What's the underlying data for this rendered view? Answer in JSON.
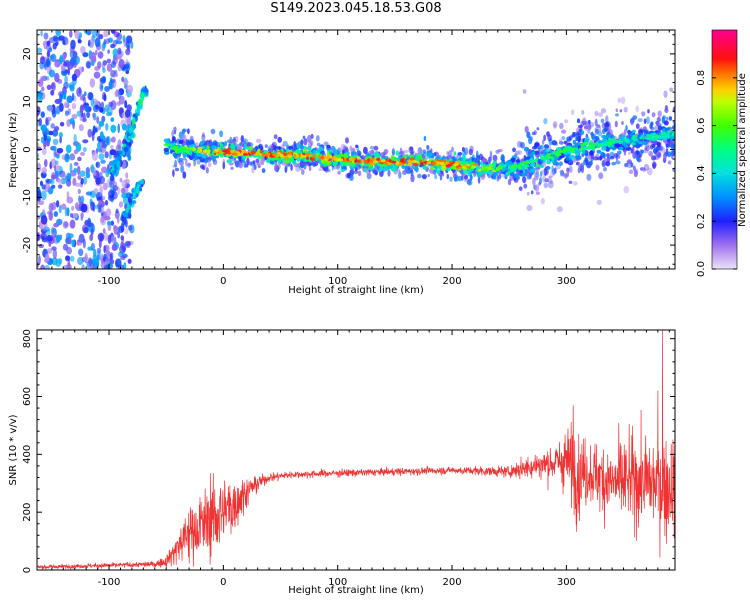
{
  "title": "S149.2023.045.18.53.G08",
  "colors": {
    "snr_line": "#f03232",
    "text": "#000000",
    "background": "#ffffff"
  },
  "chart_data": [
    {
      "type": "heatmap",
      "xlabel": "Height of straight line (km)",
      "ylabel": "Frequency (Hz)",
      "xlim": [
        -163,
        395
      ],
      "ylim": [
        -25,
        25
      ],
      "xticks": [
        -100,
        0,
        100,
        200,
        300
      ],
      "yticks": [
        -20,
        -10,
        0,
        10,
        20
      ],
      "colorbar": {
        "label": "Normalized spectral amplitude",
        "range": [
          0,
          1
        ],
        "ticks": [
          0.0,
          0.2,
          0.4,
          0.6,
          0.8
        ],
        "colormap": "rainbow (purple - blue - cyan - green - yellow - orange - red - magenta)"
      },
      "ridge": {
        "description": "dominant frequency trace",
        "height_km": [
          -50,
          -40,
          0,
          40,
          80,
          100,
          120,
          160,
          200,
          230,
          260,
          300,
          340,
          370,
          395
        ],
        "frequency_hz": [
          1,
          0,
          -0.5,
          -1,
          -1.5,
          -2,
          -2.5,
          -2.5,
          -3,
          -4,
          -3.5,
          0,
          1.5,
          2.5,
          3
        ],
        "amplitude": [
          0.6,
          0.6,
          0.95,
          0.9,
          0.95,
          0.85,
          0.95,
          0.9,
          0.95,
          0.75,
          0.6,
          0.6,
          0.55,
          0.5,
          0.5
        ]
      },
      "branch": {
        "height_km": [
          -98,
          -88,
          -80,
          -75,
          -70,
          -66
        ],
        "frequency_hz": [
          -5,
          0,
          4,
          8,
          12,
          12
        ],
        "amplitude": [
          0.4,
          0.45,
          0.5,
          0.55,
          0.5,
          0.45
        ]
      },
      "branch_low": {
        "height_km": [
          -88,
          -84,
          -80,
          -74,
          -70
        ],
        "frequency_hz": [
          -15,
          -13,
          -10,
          -8,
          -7
        ],
        "amplitude": [
          0.35,
          0.4,
          0.4,
          0.4,
          0.35
        ]
      },
      "noise_region": {
        "height_km": [
          -163,
          -100
        ],
        "frequency_hz": [
          -25,
          25
        ],
        "amplitude_range": [
          0.05,
          0.35
        ]
      }
    },
    {
      "type": "line",
      "xlabel": "Height of straight line (km)",
      "ylabel": "SNR (10 * v/v)",
      "xlim": [
        -163,
        395
      ],
      "ylim": [
        0,
        830
      ],
      "xticks": [
        -100,
        0,
        100,
        200,
        300
      ],
      "yticks": [
        0,
        200,
        400,
        600,
        800
      ],
      "series": [
        {
          "envelope_x_km": [
            -163,
            -60,
            -50,
            -40,
            -30,
            -20,
            -10,
            0,
            10,
            20,
            30,
            40,
            60,
            100,
            150,
            200,
            250,
            270,
            290,
            300,
            310,
            320,
            340,
            360,
            380,
            388,
            395
          ],
          "mean": [
            10,
            20,
            30,
            80,
            130,
            150,
            180,
            200,
            230,
            270,
            300,
            320,
            330,
            335,
            340,
            345,
            340,
            360,
            370,
            380,
            330,
            340,
            300,
            310,
            300,
            290,
            300
          ],
          "spread": [
            5,
            8,
            15,
            50,
            80,
            90,
            100,
            110,
            80,
            40,
            20,
            12,
            10,
            10,
            10,
            10,
            15,
            35,
            50,
            90,
            120,
            80,
            110,
            120,
            130,
            140,
            130
          ]
        }
      ],
      "spikes": [
        {
          "height_km": 384,
          "snr": 830
        },
        {
          "height_km": 380,
          "snr": 620
        },
        {
          "height_km": 306,
          "snr": 570
        }
      ]
    }
  ]
}
